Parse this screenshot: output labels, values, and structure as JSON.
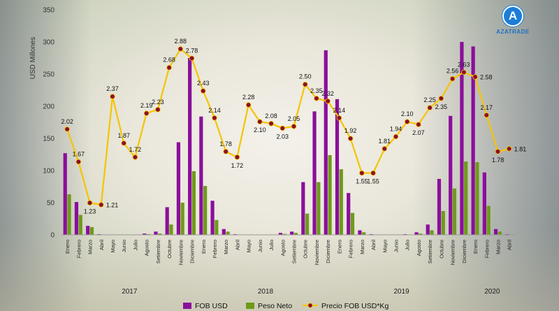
{
  "logo": {
    "letter": "A",
    "text": "AZATRADE"
  },
  "chart_data": {
    "type": "bar",
    "ylabel": "USD Millones",
    "ylim": [
      0,
      350
    ],
    "yticks": [
      0,
      50,
      100,
      150,
      200,
      250,
      300,
      350
    ],
    "grid": false,
    "legend_position": "bottom",
    "months": [
      "Enero",
      "Febrero",
      "Marzo",
      "Abril",
      "Mayo",
      "Junio",
      "Julio",
      "Agosto",
      "Setiembre",
      "Octubre",
      "Noviembre",
      "Diciembre",
      "Enero",
      "Febrero",
      "Marzo",
      "Abril",
      "Mayo",
      "Junio",
      "Julio",
      "Agosto",
      "Setiembre",
      "Octubre",
      "Noviembre",
      "Diciembre",
      "Enero",
      "Febrero",
      "Marzo",
      "Abril",
      "Mayo",
      "Junio",
      "Julio",
      "Agosto",
      "Setiembre",
      "Octubre",
      "Noviembre",
      "Diciembre",
      "Enero",
      "Febrero",
      "Marzo",
      "Abril"
    ],
    "years": [
      {
        "label": "2017",
        "start": 0,
        "count": 12
      },
      {
        "label": "2018",
        "start": 12,
        "count": 12
      },
      {
        "label": "2019",
        "start": 24,
        "count": 12
      },
      {
        "label": "2020",
        "start": 36,
        "count": 4
      }
    ],
    "series": [
      {
        "name": "FOB USD",
        "kind": "bar",
        "color": "#8a0f9a",
        "values": [
          127,
          51,
          14,
          1,
          0.5,
          0.5,
          0.5,
          2,
          5,
          43,
          144,
          275,
          184,
          53,
          9,
          1,
          0.5,
          0.5,
          0.5,
          3,
          5,
          82,
          192,
          287,
          211,
          65,
          7,
          1,
          0.5,
          0.5,
          1,
          4,
          16,
          87,
          185,
          300,
          293,
          97,
          9,
          1
        ]
      },
      {
        "name": "Peso Neto",
        "kind": "bar",
        "color": "#6f9a1a",
        "values": [
          63,
          31,
          12,
          0.5,
          0.3,
          0.3,
          0.3,
          1,
          2,
          16,
          50,
          99,
          76,
          23,
          5,
          0.5,
          0.3,
          0.3,
          0.3,
          1.5,
          3,
          33,
          82,
          124,
          102,
          34,
          4,
          0.5,
          0.3,
          0.3,
          0.5,
          2,
          7,
          37,
          72,
          114,
          113,
          45,
          5,
          0.5
        ]
      },
      {
        "name": "Precio FOB USD*Kg",
        "kind": "line",
        "color": "#f5c400",
        "marker_color": "#8b1027",
        "values": [
          2.02,
          1.67,
          1.23,
          1.21,
          2.37,
          1.87,
          1.72,
          2.19,
          2.23,
          2.68,
          2.88,
          2.78,
          2.43,
          2.14,
          1.78,
          1.72,
          2.28,
          2.1,
          2.08,
          2.03,
          2.05,
          2.5,
          2.35,
          2.32,
          2.14,
          1.92,
          1.55,
          1.55,
          1.81,
          1.94,
          2.1,
          2.07,
          2.25,
          2.35,
          2.56,
          2.63,
          2.58,
          2.17,
          1.78,
          1.81
        ],
        "labels": [
          "2.02",
          "1.67",
          "1.23",
          "1.21",
          "2.37",
          "1.87",
          "1.72",
          "2.19",
          "2.23",
          "2.68",
          "2.88",
          "2.78",
          "2.43",
          "2.14",
          "1.78",
          "1.72",
          "2.28",
          "2.10",
          "2.08",
          "2.03",
          "2.05",
          "2.50",
          "2.35",
          "2.32",
          "2.14",
          "1.92",
          "1.55",
          "1.55",
          "1.81",
          "1.94",
          "2.10",
          "2.07",
          "2.25",
          "2.35",
          "2.56",
          "2.63",
          "2.58",
          "2.17",
          "1.78",
          "1.81"
        ],
        "label_pos": [
          "a",
          "a",
          "b",
          "r",
          "a",
          "a",
          "a",
          "a",
          "a",
          "a",
          "a",
          "a",
          "a",
          "a",
          "a",
          "b",
          "a",
          "b",
          "a",
          "b",
          "a",
          "a",
          "a",
          "a",
          "a",
          "a",
          "b",
          "b",
          "a",
          "a",
          "a",
          "b",
          "a",
          "b",
          "a",
          "a",
          "r",
          "a",
          "b",
          "r"
        ]
      }
    ]
  }
}
